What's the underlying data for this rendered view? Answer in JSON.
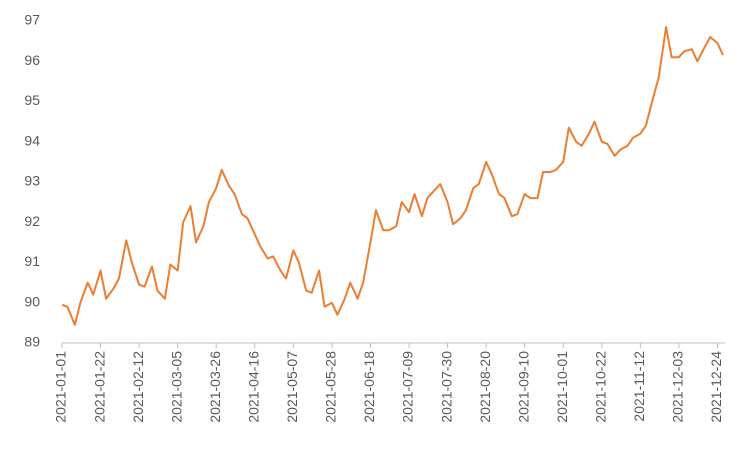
{
  "chart_data": {
    "type": "line",
    "x": [
      "2021-01-01",
      "2021-01-04",
      "2021-01-08",
      "2021-01-11",
      "2021-01-15",
      "2021-01-18",
      "2021-01-22",
      "2021-01-25",
      "2021-01-29",
      "2021-02-01",
      "2021-02-05",
      "2021-02-08",
      "2021-02-12",
      "2021-02-15",
      "2021-02-19",
      "2021-02-22",
      "2021-02-26",
      "2021-03-01",
      "2021-03-05",
      "2021-03-08",
      "2021-03-12",
      "2021-03-15",
      "2021-03-19",
      "2021-03-22",
      "2021-03-26",
      "2021-03-29",
      "2021-04-02",
      "2021-04-05",
      "2021-04-09",
      "2021-04-12",
      "2021-04-16",
      "2021-04-19",
      "2021-04-23",
      "2021-04-26",
      "2021-04-30",
      "2021-05-03",
      "2021-05-07",
      "2021-05-10",
      "2021-05-14",
      "2021-05-17",
      "2021-05-21",
      "2021-05-24",
      "2021-05-28",
      "2021-05-31",
      "2021-06-04",
      "2021-06-07",
      "2021-06-11",
      "2021-06-14",
      "2021-06-18",
      "2021-06-21",
      "2021-06-25",
      "2021-06-28",
      "2021-07-02",
      "2021-07-05",
      "2021-07-09",
      "2021-07-12",
      "2021-07-16",
      "2021-07-19",
      "2021-07-23",
      "2021-07-26",
      "2021-07-30",
      "2021-08-02",
      "2021-08-06",
      "2021-08-09",
      "2021-08-13",
      "2021-08-16",
      "2021-08-20",
      "2021-08-23",
      "2021-08-27",
      "2021-08-30",
      "2021-09-03",
      "2021-09-06",
      "2021-09-10",
      "2021-09-13",
      "2021-09-17",
      "2021-09-20",
      "2021-09-24",
      "2021-09-27",
      "2021-10-01",
      "2021-10-04",
      "2021-10-08",
      "2021-10-11",
      "2021-10-15",
      "2021-10-18",
      "2021-10-22",
      "2021-10-25",
      "2021-10-29",
      "2021-11-01",
      "2021-11-05",
      "2021-11-08",
      "2021-11-12",
      "2021-11-15",
      "2021-11-19",
      "2021-11-22",
      "2021-11-26",
      "2021-11-29",
      "2021-12-03",
      "2021-12-06",
      "2021-12-10",
      "2021-12-13",
      "2021-12-17",
      "2021-12-20",
      "2021-12-24",
      "2021-12-27"
    ],
    "series": [
      {
        "color": "#ed7d31",
        "values": [
          89.95,
          89.9,
          89.45,
          90.0,
          90.5,
          90.2,
          90.8,
          90.1,
          90.35,
          90.6,
          91.55,
          91.0,
          90.45,
          90.4,
          90.9,
          90.3,
          90.1,
          90.95,
          90.8,
          92.0,
          92.4,
          91.5,
          91.9,
          92.5,
          92.85,
          93.3,
          92.9,
          92.7,
          92.2,
          92.1,
          91.7,
          91.4,
          91.1,
          91.15,
          90.8,
          90.6,
          91.3,
          91.0,
          90.3,
          90.25,
          90.8,
          89.9,
          90.0,
          89.7,
          90.1,
          90.5,
          90.1,
          90.5,
          91.5,
          92.3,
          91.8,
          91.8,
          91.9,
          92.5,
          92.25,
          92.7,
          92.15,
          92.6,
          92.8,
          92.95,
          92.5,
          91.95,
          92.1,
          92.3,
          92.85,
          92.95,
          93.5,
          93.2,
          92.7,
          92.6,
          92.15,
          92.2,
          92.7,
          92.6,
          92.6,
          93.25,
          93.25,
          93.3,
          93.5,
          94.35,
          94.0,
          93.9,
          94.2,
          94.5,
          94.0,
          93.95,
          93.65,
          93.8,
          93.9,
          94.1,
          94.2,
          94.4,
          95.1,
          95.6,
          96.85,
          96.1,
          96.1,
          96.25,
          96.3,
          96.0,
          96.35,
          96.6,
          96.45,
          96.15
        ]
      }
    ],
    "xlim": [
      "2021-01-01",
      "2021-12-27"
    ],
    "xticks": [
      "2021-01-01",
      "2021-01-22",
      "2021-02-12",
      "2021-03-05",
      "2021-03-26",
      "2021-04-16",
      "2021-05-07",
      "2021-05-28",
      "2021-06-18",
      "2021-07-09",
      "2021-07-30",
      "2021-08-20",
      "2021-09-10",
      "2021-10-01",
      "2021-10-22",
      "2021-11-12",
      "2021-12-03",
      "2021-12-24"
    ],
    "ylim": [
      89,
      97
    ],
    "yticks": [
      89,
      90,
      91,
      92,
      93,
      94,
      95,
      96,
      97
    ],
    "grid": false
  }
}
